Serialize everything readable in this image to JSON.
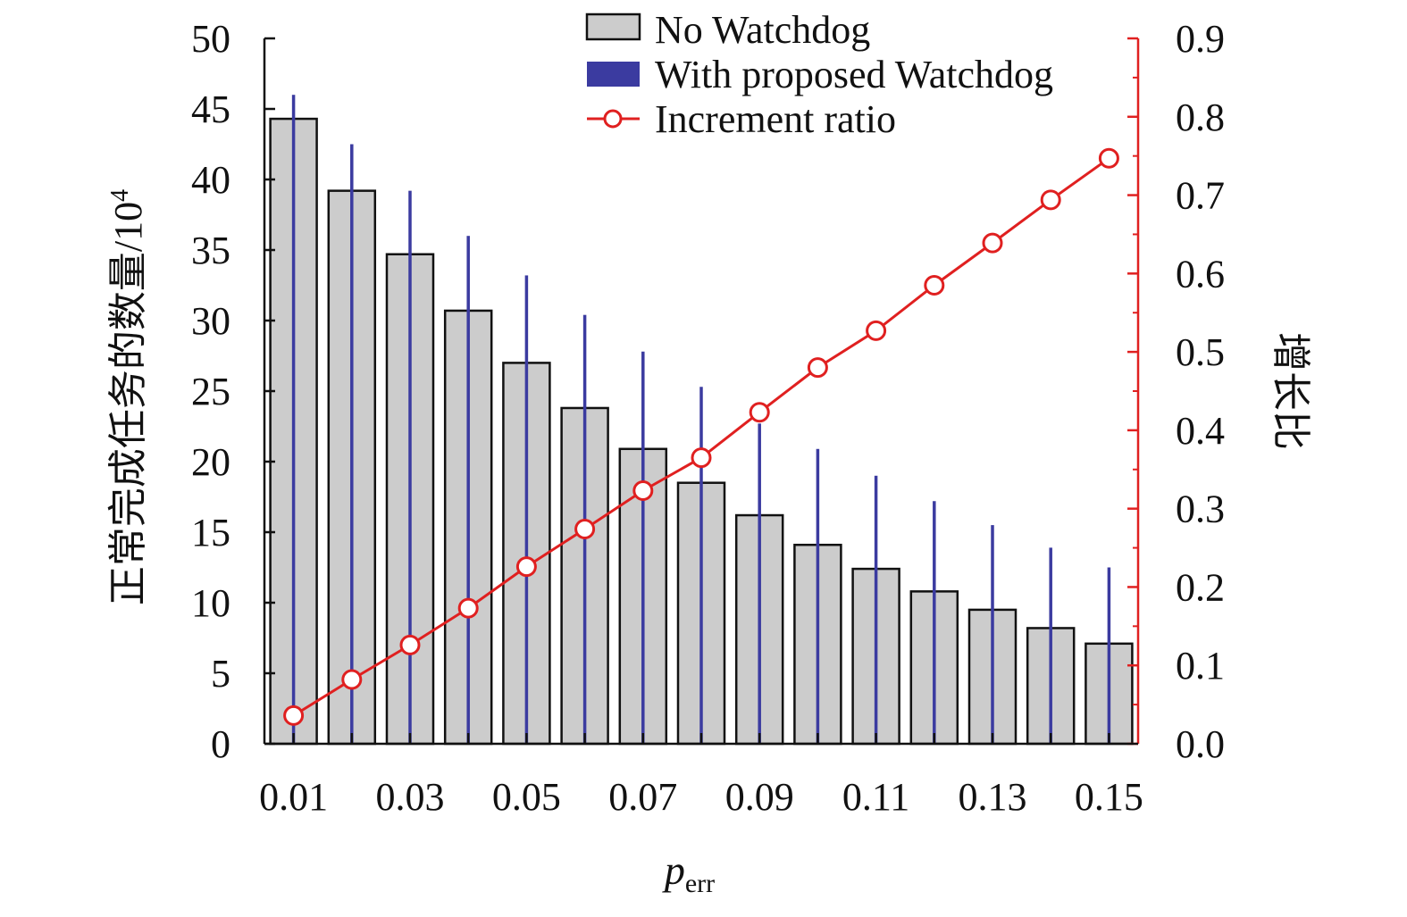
{
  "chart_data": {
    "type": "bar",
    "categories": [
      "0.01",
      "0.02",
      "0.03",
      "0.04",
      "0.05",
      "0.06",
      "0.07",
      "0.08",
      "0.09",
      "0.10",
      "0.11",
      "0.12",
      "0.13",
      "0.14",
      "0.15"
    ],
    "x_tick_labels": [
      "0.01",
      "0.03",
      "0.05",
      "0.07",
      "0.09",
      "0.11",
      "0.13",
      "0.15"
    ],
    "series": [
      {
        "name": "No Watchdog",
        "axis": "left",
        "kind": "bar",
        "values": [
          44.3,
          39.2,
          34.7,
          30.7,
          27.0,
          23.8,
          20.9,
          18.5,
          16.2,
          14.1,
          12.4,
          10.8,
          9.5,
          8.2,
          7.1
        ]
      },
      {
        "name": "With proposed Watchdog",
        "axis": "left",
        "kind": "bar",
        "values": [
          46.0,
          42.5,
          39.2,
          36.0,
          33.2,
          30.4,
          27.8,
          25.3,
          22.7,
          20.9,
          19.0,
          17.2,
          15.5,
          13.9,
          12.5
        ]
      },
      {
        "name": "Increment ratio",
        "axis": "right",
        "kind": "line",
        "values": [
          0.036,
          0.082,
          0.126,
          0.173,
          0.226,
          0.274,
          0.323,
          0.365,
          0.423,
          0.48,
          0.527,
          0.585,
          0.639,
          0.694,
          0.747
        ]
      }
    ],
    "title": "",
    "xlabel": "p",
    "xlabel_sub": "err",
    "ylabel_left": "正常完成任务的数量/10",
    "ylabel_left_sup": "4",
    "ylabel_right": "增长比",
    "ylim_left": [
      0,
      50
    ],
    "ylim_right": [
      0,
      0.9
    ],
    "yticks_left": [
      "0",
      "5",
      "10",
      "15",
      "20",
      "25",
      "30",
      "35",
      "40",
      "45",
      "50"
    ],
    "yticks_right": [
      "0.0",
      "0.1",
      "0.2",
      "0.3",
      "0.4",
      "0.5",
      "0.6",
      "0.7",
      "0.8",
      "0.9"
    ],
    "legend_position": "top-right",
    "grid": false,
    "colors": {
      "no_watchdog_fill": "#cccccc",
      "no_watchdog_stroke": "#111111",
      "watchdog": "#3b3ba0",
      "ratio": "#e02020",
      "axis": "#111111"
    }
  }
}
